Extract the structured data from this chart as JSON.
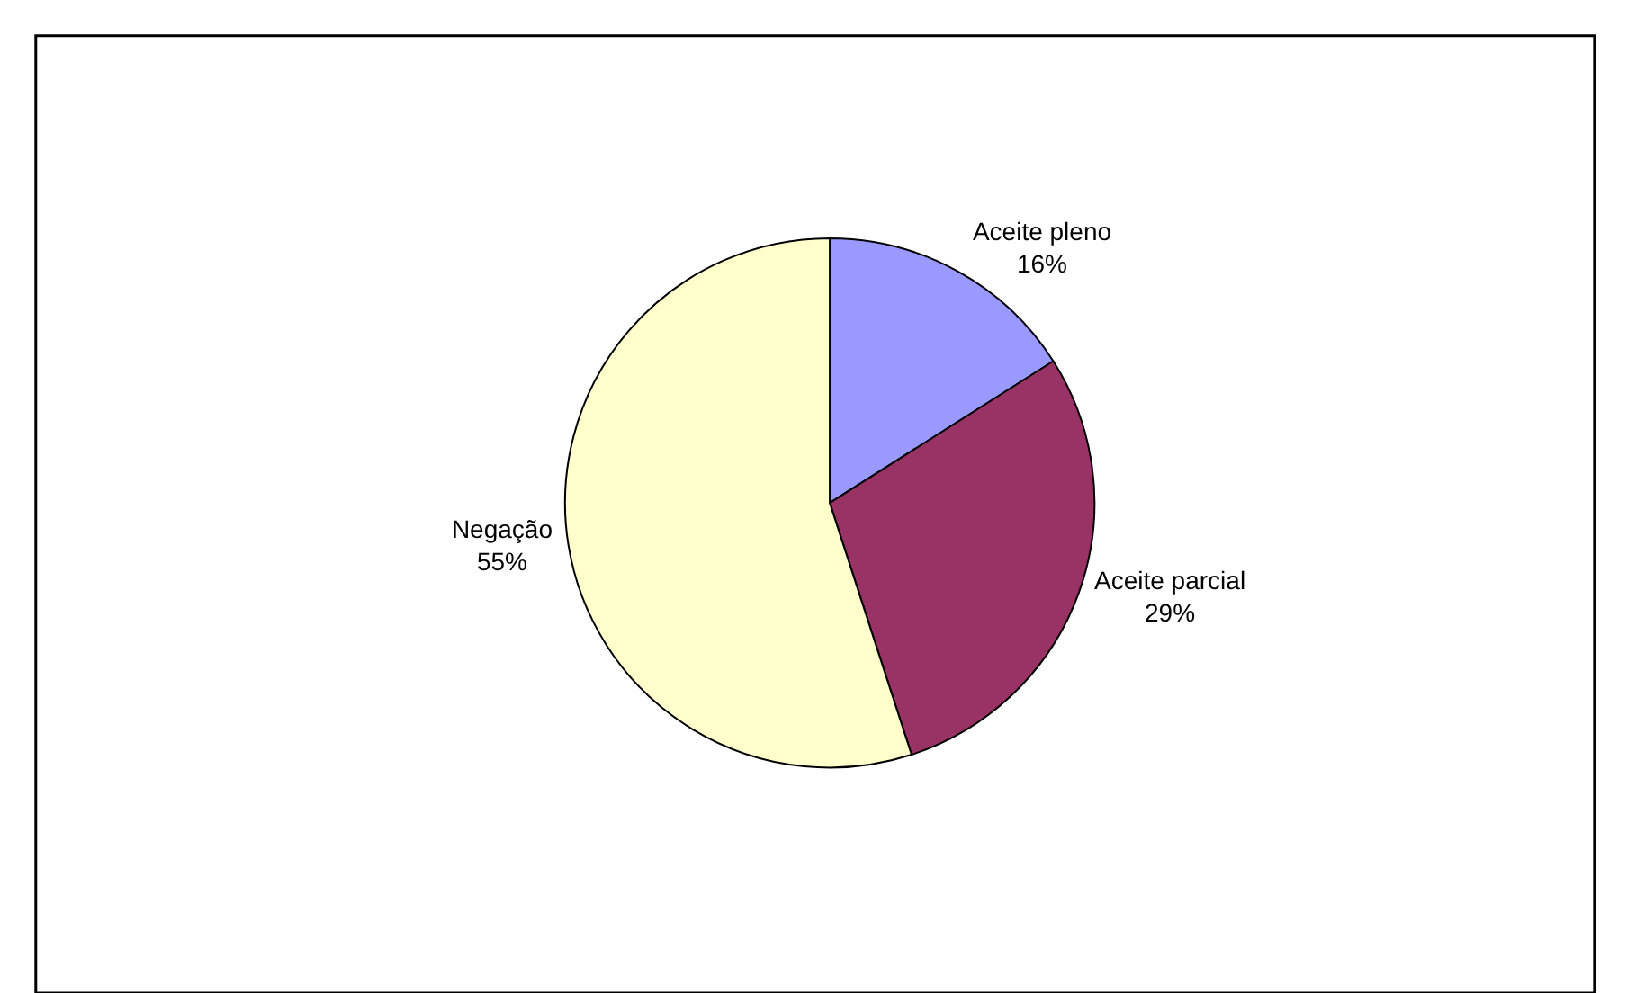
{
  "chart_data": {
    "type": "pie",
    "categories": [
      "Aceite pleno",
      "Aceite parcial",
      "Negação"
    ],
    "values": [
      16,
      29,
      55
    ],
    "colors": [
      "#9999ff",
      "#993366",
      "#ffffcc"
    ],
    "value_labels": [
      "16%",
      "29%",
      "55%"
    ],
    "legend": false
  }
}
